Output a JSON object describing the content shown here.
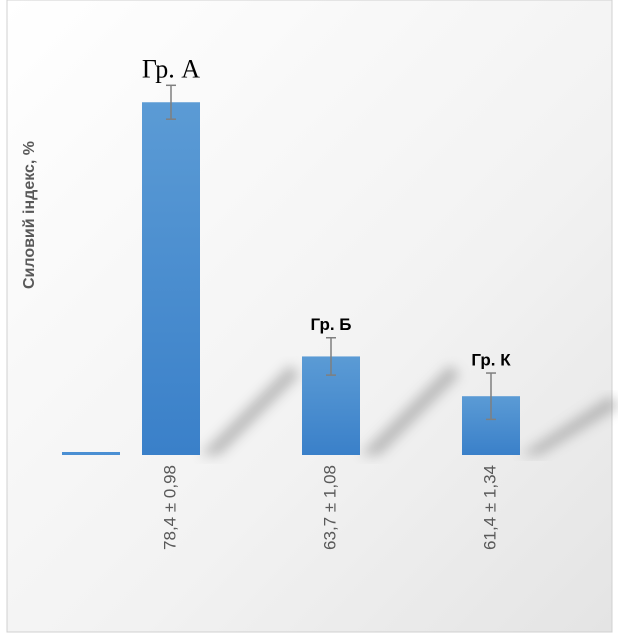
{
  "chart_data": {
    "type": "bar",
    "y_label": "Силовий індекс, %",
    "categories": [
      null,
      "78,4 ± 0,98",
      "63,7 ± 1,08",
      "61,4 ± 1,34"
    ],
    "bar_labels": [
      null,
      "Гр. А",
      "Гр. Б",
      "Гр. К"
    ],
    "values": [
      58,
      78.4,
      63.7,
      61.4
    ],
    "errors": [
      null,
      0.98,
      1.08,
      1.34
    ],
    "color": "#4a8fd3",
    "ylim": [
      58,
      82
    ]
  }
}
